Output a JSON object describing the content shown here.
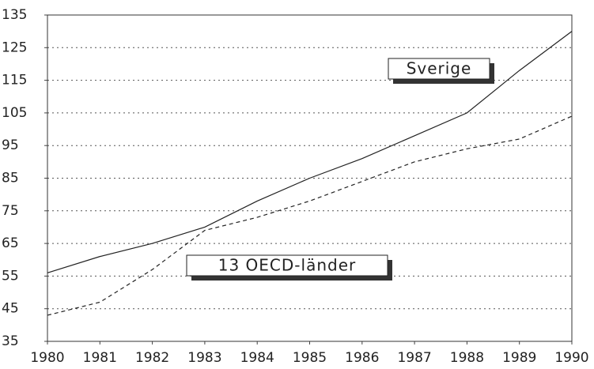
{
  "chart_data": {
    "type": "line",
    "x": [
      1980,
      1981,
      1982,
      1983,
      1984,
      1985,
      1986,
      1987,
      1988,
      1989,
      1990
    ],
    "xlim": [
      1980,
      1990
    ],
    "xticks": [
      1980,
      1981,
      1982,
      1983,
      1984,
      1985,
      1986,
      1987,
      1988,
      1989,
      1990
    ],
    "ylim": [
      35,
      135
    ],
    "yticks": [
      35,
      45,
      55,
      65,
      75,
      85,
      95,
      105,
      115,
      125,
      135
    ],
    "grid": true,
    "series": [
      {
        "name": "Sverige",
        "color": "#222222",
        "line_style": "solid",
        "values": [
          56,
          61,
          65,
          70,
          78,
          85,
          91,
          98,
          105,
          118,
          130
        ]
      },
      {
        "name": "13 OECD-länder",
        "color": "#222222",
        "line_style": "dashed",
        "values": [
          43,
          47,
          57,
          69,
          73,
          78,
          84,
          90,
          94,
          97,
          104
        ]
      }
    ]
  }
}
